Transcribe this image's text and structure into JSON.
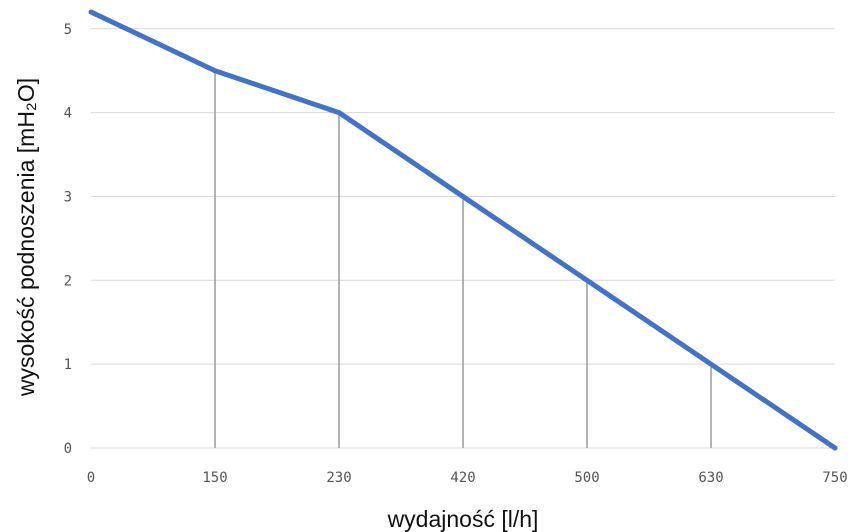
{
  "chart_data": {
    "type": "line",
    "x_categories": [
      "0",
      "150",
      "230",
      "420",
      "500",
      "630",
      "750"
    ],
    "series": [
      {
        "values": [
          5.2,
          4.5,
          4.0,
          3.0,
          2.0,
          1.0,
          0.0
        ]
      }
    ],
    "y_ticks": [
      "0",
      "1",
      "2",
      "3",
      "4",
      "5"
    ],
    "ylim": [
      0,
      5.2
    ],
    "xlabel": "wydajność [l/h]",
    "ylabel": "wysokość podnoszenia [mH₂O]",
    "grid": "horizontal",
    "drop_lines": true,
    "colors": {
      "series": "#4472c4",
      "grid": "#d9d9d9",
      "drop_line": "#9a9a9a"
    }
  }
}
